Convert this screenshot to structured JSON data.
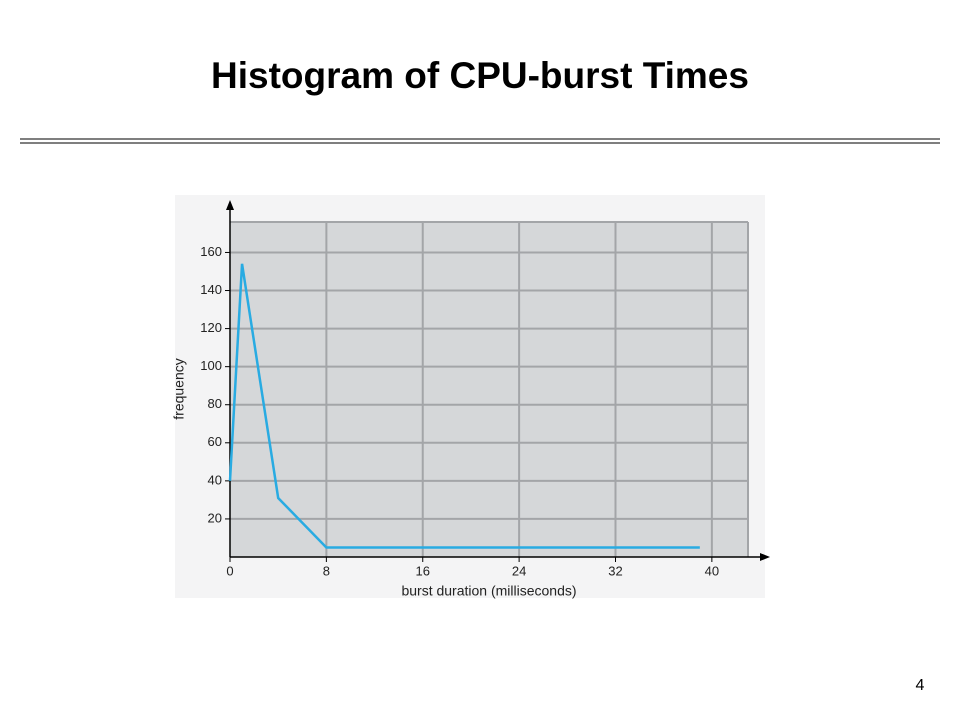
{
  "slide": {
    "title": "Histogram of CPU-burst Times",
    "page_number": "4"
  },
  "chart_data": {
    "type": "line",
    "x_label": "burst duration (milliseconds)",
    "y_label": "frequency",
    "x": [
      0,
      1,
      4,
      8,
      39
    ],
    "values": [
      40,
      154,
      31,
      5,
      5
    ],
    "color": "#29abe2",
    "xlim": [
      0,
      43
    ],
    "ylim": [
      0,
      176
    ],
    "xticks": [
      0,
      8,
      16,
      24,
      32,
      40
    ],
    "yticks": [
      20,
      40,
      60,
      80,
      100,
      120,
      140,
      160
    ],
    "grid": true
  }
}
